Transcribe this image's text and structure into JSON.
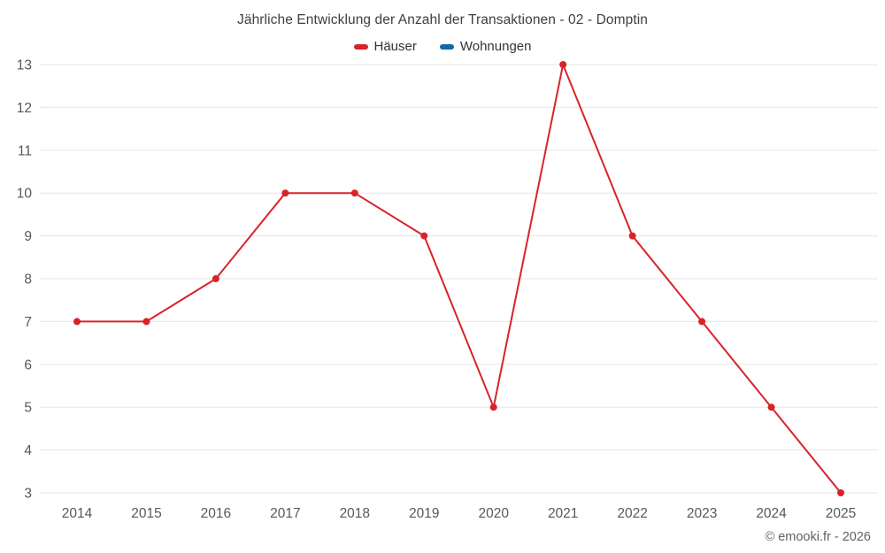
{
  "chart_data": {
    "type": "line",
    "title": "Jährliche Entwicklung der Anzahl der Transaktionen - 02 - Domptin",
    "categories": [
      "2014",
      "2015",
      "2016",
      "2017",
      "2018",
      "2019",
      "2020",
      "2021",
      "2022",
      "2023",
      "2024",
      "2025"
    ],
    "series": [
      {
        "name": "Häuser",
        "color": "#d8232a",
        "values": [
          7,
          7,
          8,
          10,
          10,
          9,
          5,
          13,
          9,
          7,
          5,
          3
        ]
      },
      {
        "name": "Wohnungen",
        "color": "#1268a8",
        "values": []
      }
    ],
    "ylim": [
      3,
      13
    ],
    "yticks": [
      3,
      4,
      5,
      6,
      7,
      8,
      9,
      10,
      11,
      12,
      13
    ],
    "grid": "horizontal",
    "legend_position": "top",
    "grid_color": "#e6e6e6",
    "tick_label_color": "#55585c"
  },
  "footer": {
    "credit": "© emooki.fr - 2026"
  }
}
